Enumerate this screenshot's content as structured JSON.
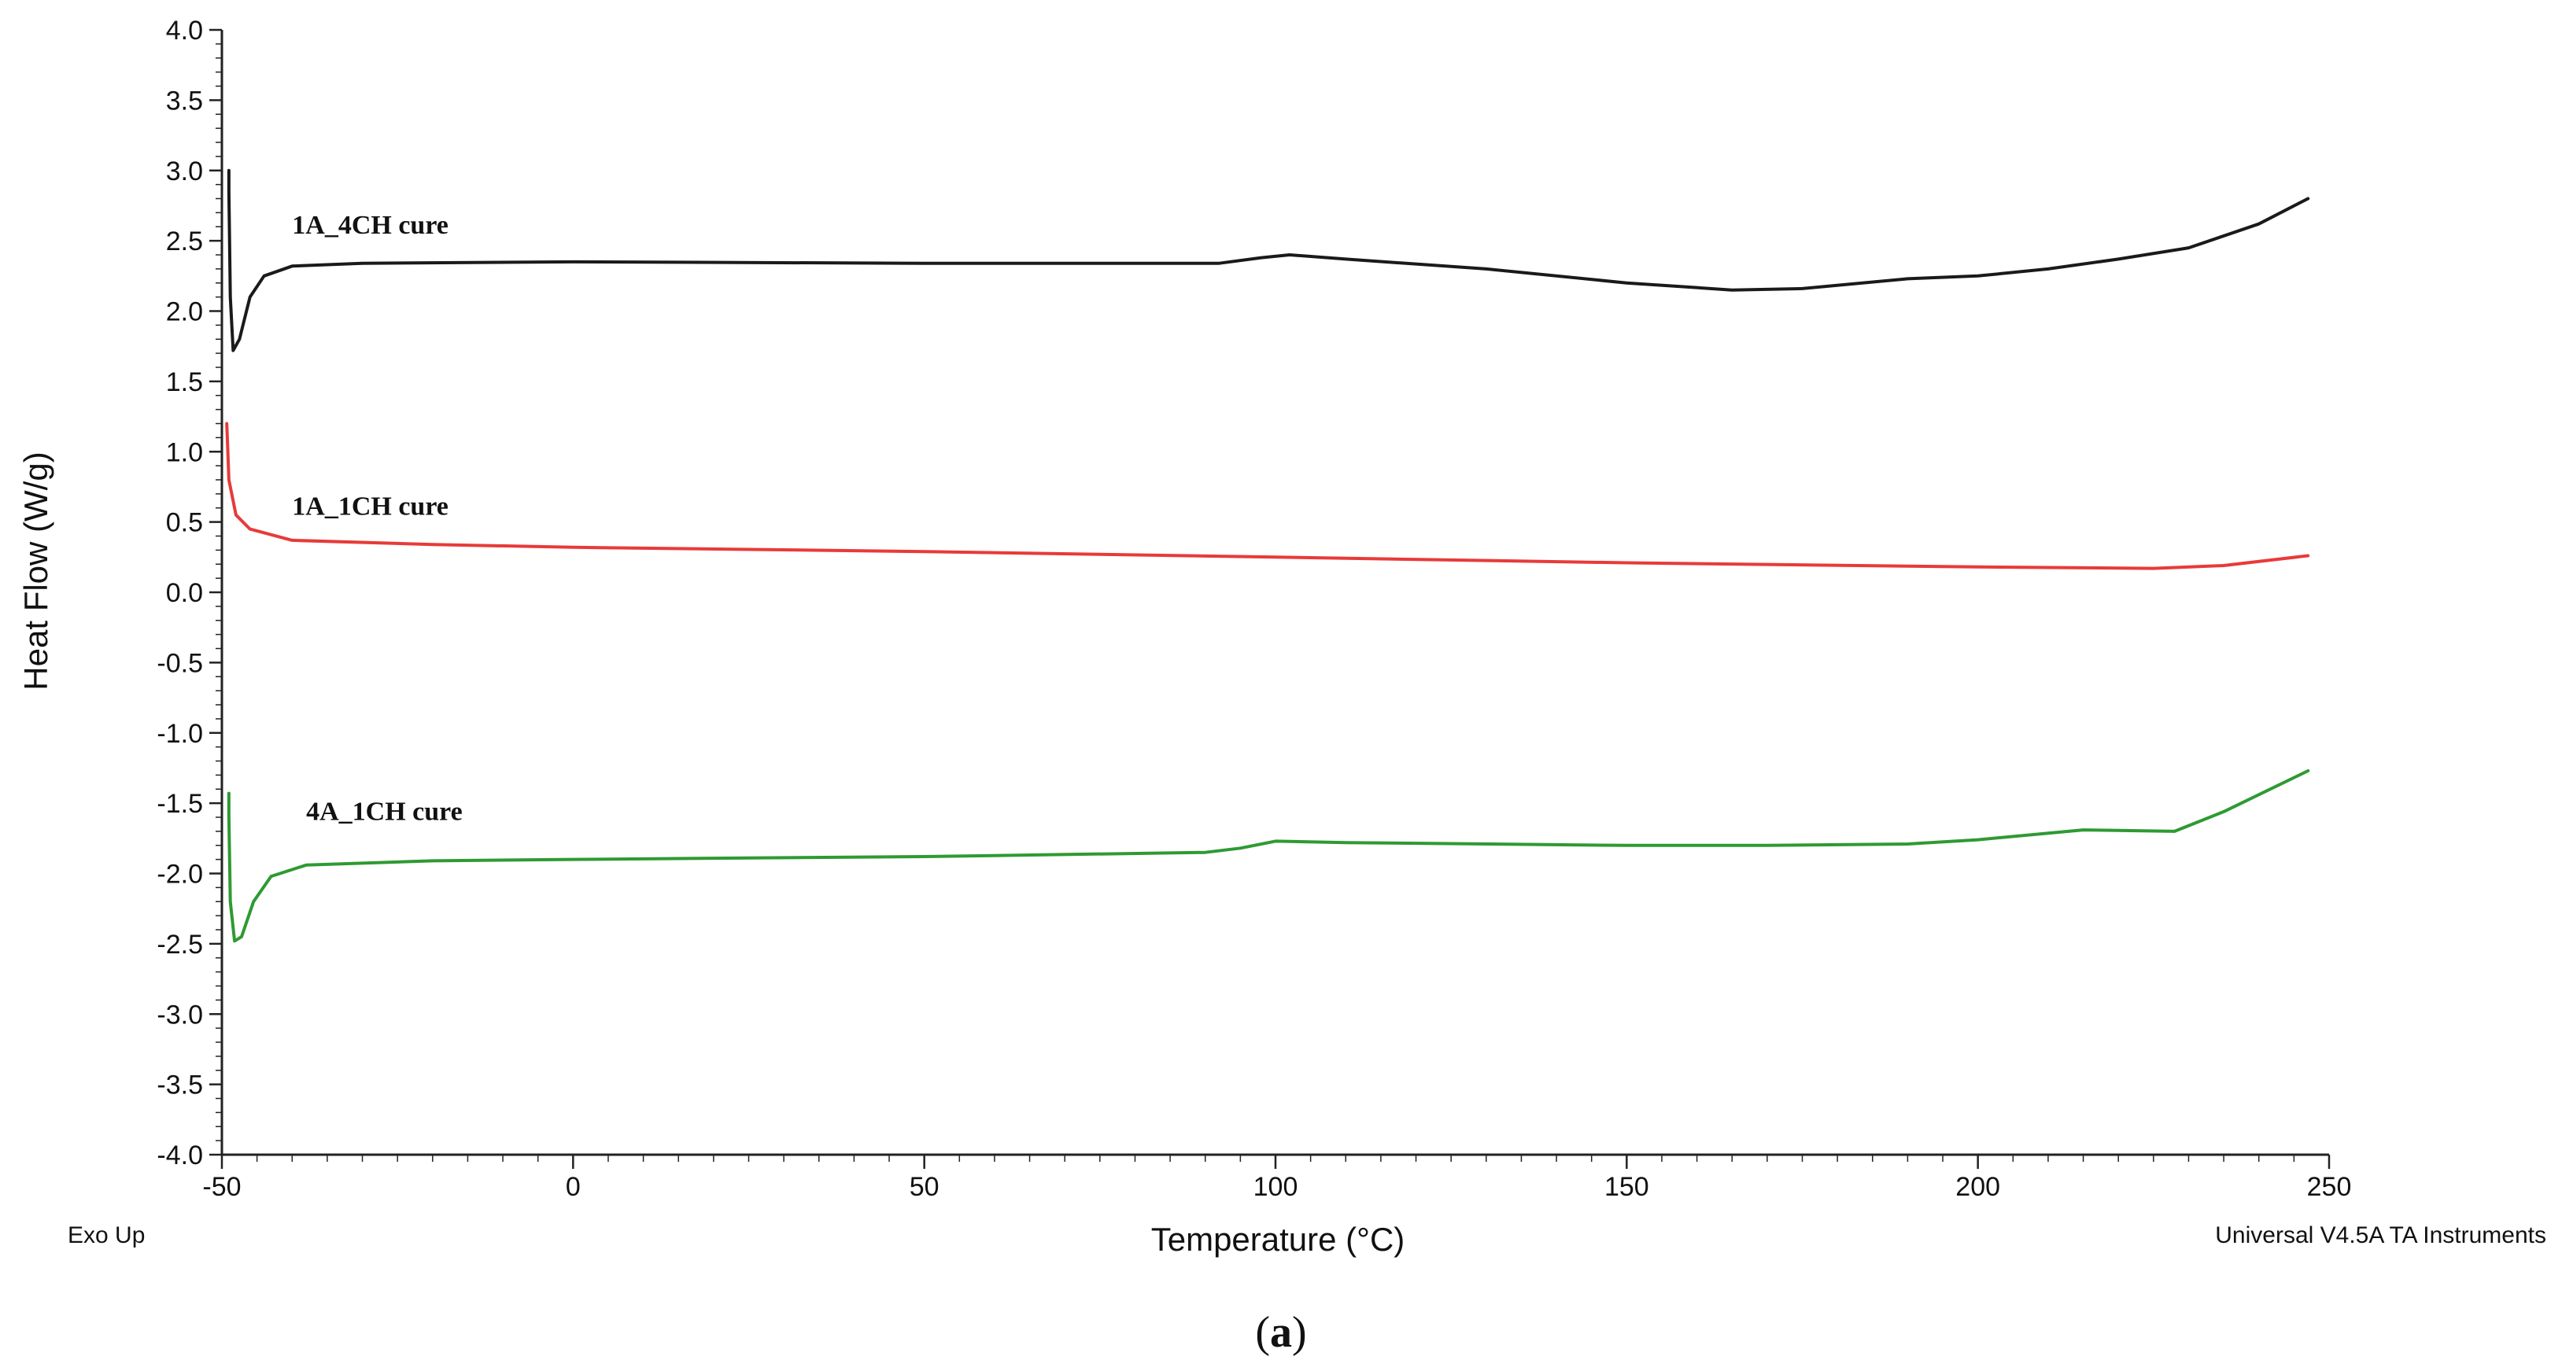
{
  "chart_data": {
    "type": "line",
    "xlabel": "Temperature (°C)",
    "ylabel": "Heat Flow (W/g)",
    "xlim": [
      -50,
      250
    ],
    "ylim": [
      -4.0,
      4.0
    ],
    "x_ticks": [
      -50,
      0,
      50,
      100,
      150,
      200,
      250
    ],
    "y_ticks": [
      "4.0",
      "3.5",
      "3.0",
      "2.5",
      "2.0",
      "1.5",
      "1.0",
      "0.5",
      "0.0",
      "-0.5",
      "-1.0",
      "-1.5",
      "-2.0",
      "-2.5",
      "-3.0",
      "-3.5",
      "-4.0"
    ],
    "grid": false,
    "series": [
      {
        "name": "1A_4CH cure",
        "color": "#1a1a1a",
        "points": [
          [
            -49,
            3.0
          ],
          [
            -49,
            2.85
          ],
          [
            -48.8,
            2.1
          ],
          [
            -48.4,
            1.72
          ],
          [
            -47.5,
            1.8
          ],
          [
            -46,
            2.1
          ],
          [
            -44,
            2.25
          ],
          [
            -40,
            2.32
          ],
          [
            -30,
            2.34
          ],
          [
            0,
            2.35
          ],
          [
            50,
            2.34
          ],
          [
            92,
            2.34
          ],
          [
            98,
            2.38
          ],
          [
            102,
            2.4
          ],
          [
            110,
            2.37
          ],
          [
            130,
            2.3
          ],
          [
            150,
            2.2
          ],
          [
            165,
            2.15
          ],
          [
            175,
            2.16
          ],
          [
            190,
            2.23
          ],
          [
            200,
            2.25
          ],
          [
            210,
            2.3
          ],
          [
            220,
            2.37
          ],
          [
            230,
            2.45
          ],
          [
            240,
            2.62
          ],
          [
            247,
            2.8
          ]
        ]
      },
      {
        "name": "1A_1CH cure",
        "color": "#e83a3a",
        "points": [
          [
            -49.3,
            1.2
          ],
          [
            -49,
            0.8
          ],
          [
            -48,
            0.55
          ],
          [
            -46,
            0.45
          ],
          [
            -40,
            0.37
          ],
          [
            -20,
            0.34
          ],
          [
            0,
            0.32
          ],
          [
            50,
            0.29
          ],
          [
            100,
            0.25
          ],
          [
            150,
            0.21
          ],
          [
            200,
            0.18
          ],
          [
            225,
            0.17
          ],
          [
            235,
            0.19
          ],
          [
            247,
            0.26
          ]
        ]
      },
      {
        "name": "4A_1CH cure",
        "color": "#2e9a33",
        "points": [
          [
            -49,
            -1.43
          ],
          [
            -49,
            -1.6
          ],
          [
            -48.8,
            -2.2
          ],
          [
            -48.2,
            -2.48
          ],
          [
            -47.2,
            -2.45
          ],
          [
            -45.5,
            -2.2
          ],
          [
            -43,
            -2.02
          ],
          [
            -38,
            -1.94
          ],
          [
            -20,
            -1.91
          ],
          [
            0,
            -1.9
          ],
          [
            50,
            -1.88
          ],
          [
            90,
            -1.85
          ],
          [
            95,
            -1.82
          ],
          [
            100,
            -1.77
          ],
          [
            110,
            -1.78
          ],
          [
            150,
            -1.8
          ],
          [
            170,
            -1.8
          ],
          [
            190,
            -1.79
          ],
          [
            200,
            -1.76
          ],
          [
            215,
            -1.69
          ],
          [
            228,
            -1.7
          ],
          [
            235,
            -1.56
          ],
          [
            247,
            -1.27
          ]
        ]
      }
    ],
    "annotations": [
      "Exo Up",
      "Universal V4.5A TA Instruments"
    ]
  },
  "caption": {
    "open": "(",
    "letter": "a",
    "close": ")"
  }
}
